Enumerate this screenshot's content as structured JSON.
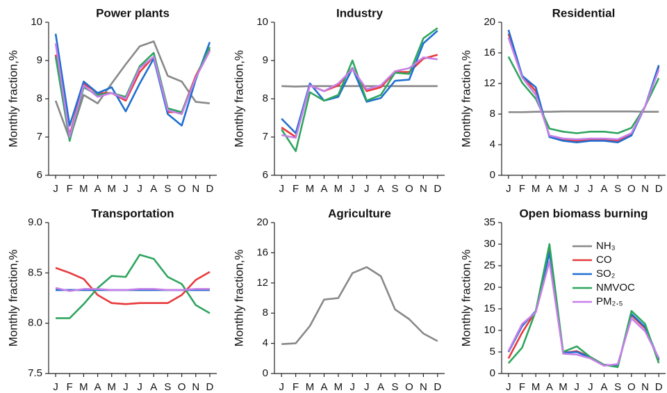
{
  "chart_data": [
    {
      "type": "line",
      "title": "Power plants",
      "y_label": "Monthly fraction,%",
      "categories": [
        "J",
        "F",
        "M",
        "A",
        "M",
        "J",
        "J",
        "A",
        "S",
        "O",
        "N",
        "D"
      ],
      "ylim": [
        6,
        10
      ],
      "yticks": [
        6,
        7,
        8,
        9,
        10
      ],
      "series": [
        {
          "name": "NH₃",
          "color": "#888888",
          "values": [
            7.95,
            6.95,
            8.1,
            7.88,
            8.4,
            8.9,
            9.37,
            9.5,
            8.6,
            8.45,
            7.92,
            7.88
          ]
        },
        {
          "name": "CO",
          "color": "#e8393b",
          "values": [
            9.15,
            7.05,
            8.4,
            8.15,
            8.15,
            7.95,
            8.7,
            9.1,
            7.65,
            7.65,
            8.6,
            9.3
          ]
        },
        {
          "name": "SO₂",
          "color": "#1f6fd0",
          "values": [
            9.7,
            7.3,
            8.45,
            8.15,
            8.3,
            7.67,
            8.4,
            9.05,
            7.6,
            7.3,
            8.5,
            9.48
          ]
        },
        {
          "name": "NMVOC",
          "color": "#2ea55f",
          "values": [
            9.1,
            6.9,
            8.3,
            8.1,
            8.15,
            8.05,
            8.85,
            9.2,
            7.75,
            7.65,
            8.55,
            9.35
          ]
        },
        {
          "name": "PM₂.₅",
          "color": "#c77fe8",
          "values": [
            9.45,
            7.0,
            8.35,
            8.05,
            8.15,
            8.0,
            8.8,
            9.1,
            7.7,
            7.6,
            8.55,
            9.25
          ]
        }
      ]
    },
    {
      "type": "line",
      "title": "Industry",
      "y_label": "Monthly fraction,%",
      "categories": [
        "J",
        "F",
        "M",
        "A",
        "M",
        "J",
        "J",
        "A",
        "S",
        "O",
        "N",
        "D"
      ],
      "ylim": [
        6,
        10
      ],
      "yticks": [
        6,
        7,
        8,
        9,
        10
      ],
      "series": [
        {
          "name": "NH₃",
          "color": "#888888",
          "values": [
            8.33,
            8.32,
            8.33,
            8.33,
            8.33,
            8.33,
            8.33,
            8.33,
            8.33,
            8.33,
            8.33,
            8.33
          ]
        },
        {
          "name": "CO",
          "color": "#e8393b",
          "values": [
            7.25,
            7.0,
            8.35,
            8.2,
            8.35,
            8.8,
            8.2,
            8.3,
            8.7,
            8.7,
            9.05,
            9.15
          ]
        },
        {
          "name": "SO₂",
          "color": "#1f6fd0",
          "values": [
            7.48,
            7.1,
            8.4,
            7.95,
            8.05,
            8.8,
            7.92,
            8.02,
            8.47,
            8.5,
            9.45,
            9.78
          ]
        },
        {
          "name": "NMVOC",
          "color": "#2ea55f",
          "values": [
            7.2,
            6.63,
            8.17,
            7.95,
            8.1,
            9.0,
            7.95,
            8.1,
            8.68,
            8.65,
            9.58,
            9.85
          ]
        },
        {
          "name": "PM₂.₅",
          "color": "#c77fe8",
          "values": [
            7.05,
            6.98,
            8.35,
            8.2,
            8.4,
            8.78,
            8.25,
            8.35,
            8.72,
            8.8,
            9.08,
            9.03
          ]
        }
      ]
    },
    {
      "type": "line",
      "title": "Residential",
      "y_label": "Monthly fraction,%",
      "categories": [
        "J",
        "F",
        "M",
        "A",
        "M",
        "J",
        "J",
        "A",
        "S",
        "O",
        "N",
        "D"
      ],
      "ylim": [
        0,
        20
      ],
      "yticks": [
        0,
        4,
        8,
        12,
        16,
        20
      ],
      "series": [
        {
          "name": "NH₃",
          "color": "#888888",
          "values": [
            8.25,
            8.25,
            8.3,
            8.3,
            8.35,
            8.35,
            8.35,
            8.35,
            8.35,
            8.35,
            8.3,
            8.3
          ]
        },
        {
          "name": "CO",
          "color": "#e8393b",
          "values": [
            18.5,
            13,
            11,
            5.1,
            4.6,
            4.5,
            4.6,
            4.6,
            4.5,
            5.3,
            9,
            14.2
          ]
        },
        {
          "name": "SO₂",
          "color": "#1f6fd0",
          "values": [
            19,
            13,
            11.5,
            5,
            4.5,
            4.3,
            4.5,
            4.5,
            4.3,
            5.2,
            9,
            14.4
          ]
        },
        {
          "name": "NMVOC",
          "color": "#2ea55f",
          "values": [
            15.5,
            12.1,
            10,
            6.1,
            5.7,
            5.5,
            5.7,
            5.7,
            5.5,
            6.2,
            9,
            12.7
          ]
        },
        {
          "name": "PM₂.₅",
          "color": "#c77fe8",
          "values": [
            18,
            12.8,
            10.5,
            5.2,
            4.8,
            4.7,
            4.8,
            4.8,
            4.7,
            5.5,
            9,
            13.8
          ]
        }
      ]
    },
    {
      "type": "line",
      "title": "Transportation",
      "y_label": "Monthly fraction,%",
      "categories": [
        "J",
        "F",
        "M",
        "A",
        "M",
        "J",
        "J",
        "A",
        "S",
        "O",
        "N",
        "D"
      ],
      "ylim": [
        7.5,
        9.0
      ],
      "yticks": [
        7.5,
        {
          "value": 8,
          "label": "8.0"
        },
        8.5,
        {
          "value": 9,
          "label": "9.0"
        }
      ],
      "series": [
        {
          "name": "NH₃",
          "color": "#888888",
          "values": [
            8.33,
            8.33,
            8.33,
            8.33,
            8.33,
            8.33,
            8.33,
            8.33,
            8.33,
            8.33,
            8.33,
            8.33
          ]
        },
        {
          "name": "CO",
          "color": "#e8393b",
          "values": [
            8.55,
            8.5,
            8.44,
            8.28,
            8.2,
            8.19,
            8.2,
            8.2,
            8.2,
            8.28,
            8.43,
            8.51
          ]
        },
        {
          "name": "SO₂",
          "color": "#1f6fd0",
          "values": [
            8.33,
            8.33,
            8.33,
            8.33,
            8.33,
            8.33,
            8.33,
            8.33,
            8.33,
            8.33,
            8.33,
            8.33
          ]
        },
        {
          "name": "NMVOC",
          "color": "#2ea55f",
          "values": [
            8.05,
            8.05,
            8.19,
            8.35,
            8.47,
            8.46,
            8.68,
            8.64,
            8.46,
            8.39,
            8.18,
            8.1
          ]
        },
        {
          "name": "PM₂.₅",
          "color": "#c77fe8",
          "values": [
            8.35,
            8.32,
            8.34,
            8.34,
            8.33,
            8.33,
            8.34,
            8.34,
            8.33,
            8.33,
            8.34,
            8.34
          ]
        }
      ]
    },
    {
      "type": "line",
      "title": "Agriculture",
      "y_label": "Monthly fraction,%",
      "categories": [
        "J",
        "F",
        "M",
        "A",
        "M",
        "J",
        "J",
        "A",
        "S",
        "O",
        "N",
        "D"
      ],
      "ylim": [
        0,
        20
      ],
      "yticks": [
        0,
        4,
        8,
        12,
        16,
        20
      ],
      "series": [
        {
          "name": "NH₃",
          "color": "#888888",
          "values": [
            3.9,
            4.0,
            6.3,
            9.8,
            10,
            13.3,
            14.1,
            12.9,
            8.5,
            7.2,
            5.3,
            4.3
          ]
        }
      ]
    },
    {
      "type": "line",
      "title": "Open biomass burning",
      "y_label": "Monthly fraction,%",
      "categories": [
        "J",
        "F",
        "M",
        "A",
        "M",
        "J",
        "J",
        "A",
        "S",
        "O",
        "N",
        "D"
      ],
      "ylim": [
        0,
        35
      ],
      "yticks": [
        0,
        5,
        10,
        15,
        20,
        25,
        30,
        35
      ],
      "legend": "upper right",
      "series": [
        {
          "name": "NH₃",
          "color": "#888888",
          "values": [
            null,
            null,
            null,
            null,
            null,
            null,
            null,
            null,
            null,
            null,
            null,
            null
          ]
        },
        {
          "name": "CO",
          "color": "#e8393b",
          "values": [
            3.5,
            9.5,
            14.5,
            28.5,
            4.8,
            5.2,
            3.8,
            2,
            1.8,
            13.5,
            10.5,
            3
          ]
        },
        {
          "name": "SO₂",
          "color": "#1f6fd0",
          "values": [
            5,
            11,
            14.5,
            28,
            4.8,
            5,
            3.7,
            2,
            1.8,
            13.8,
            10.8,
            3.3
          ]
        },
        {
          "name": "NMVOC",
          "color": "#2ea55f",
          "values": [
            2.4,
            6,
            14.5,
            30,
            5,
            6.3,
            3.8,
            2,
            1.5,
            14.5,
            11.5,
            2.4
          ]
        },
        {
          "name": "PM₂.₅",
          "color": "#c77fe8",
          "values": [
            5.2,
            11.5,
            14.2,
            26,
            4.6,
            4.4,
            3.5,
            1.8,
            2.2,
            12.8,
            9.8,
            3.6
          ]
        }
      ]
    }
  ]
}
